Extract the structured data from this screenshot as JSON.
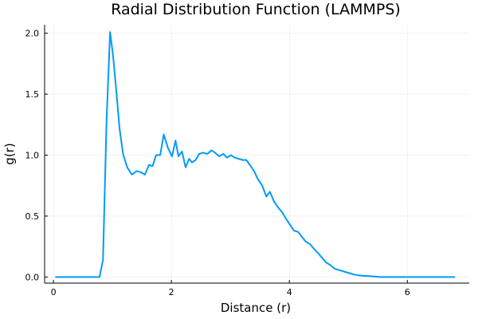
{
  "chart_data": {
    "type": "line",
    "title": "Radial Distribution Function (LAMMPS)",
    "xlabel": "Distance (r)",
    "ylabel": "g(r)",
    "xlim": [
      -0.15,
      7.05
    ],
    "ylim": [
      -0.05,
      2.07
    ],
    "x_ticks": [
      0,
      2,
      4,
      6
    ],
    "y_ticks": [
      0.0,
      0.5,
      1.0,
      1.5,
      2.0
    ],
    "x_tick_labels": [
      "0",
      "2",
      "4",
      "6"
    ],
    "y_tick_labels": [
      "0.0",
      "0.5",
      "1.0",
      "1.5",
      "2.0"
    ],
    "grid": true,
    "legend": "none",
    "colors": {
      "series": "#009AFA",
      "axis": "#000000"
    },
    "series": [
      {
        "x": [
          0.04,
          0.2,
          0.4,
          0.6,
          0.78,
          0.84,
          0.9,
          0.96,
          1.01,
          1.06,
          1.12,
          1.18,
          1.25,
          1.33,
          1.41,
          1.48,
          1.55,
          1.62,
          1.68,
          1.74,
          1.81,
          1.87,
          1.94,
          2.01,
          2.07,
          2.12,
          2.18,
          2.24,
          2.3,
          2.35,
          2.41,
          2.47,
          2.54,
          2.61,
          2.68,
          2.74,
          2.81,
          2.88,
          2.94,
          3.01,
          3.07,
          3.14,
          3.21,
          3.27,
          3.33,
          3.4,
          3.47,
          3.54,
          3.61,
          3.67,
          3.74,
          3.81,
          3.88,
          3.94,
          4.01,
          4.08,
          4.15,
          4.21,
          4.28,
          4.35,
          4.42,
          4.48,
          4.55,
          4.62,
          4.69,
          4.76,
          4.82,
          4.89,
          4.96,
          5.03,
          5.1,
          5.16,
          5.25,
          5.35,
          5.45,
          5.55,
          5.7,
          5.85,
          6.0,
          6.2,
          6.4,
          6.6,
          6.8
        ],
        "y": [
          0.0,
          0.0,
          0.0,
          0.0,
          0.0,
          0.14,
          1.28,
          2.01,
          1.82,
          1.56,
          1.22,
          1.01,
          0.9,
          0.84,
          0.87,
          0.86,
          0.84,
          0.92,
          0.91,
          1.0,
          1.0,
          1.17,
          1.06,
          0.99,
          1.12,
          0.99,
          1.03,
          0.9,
          0.97,
          0.94,
          0.96,
          1.01,
          1.02,
          1.01,
          1.04,
          1.02,
          0.99,
          1.01,
          0.98,
          1.0,
          0.98,
          0.97,
          0.96,
          0.96,
          0.92,
          0.87,
          0.8,
          0.75,
          0.66,
          0.7,
          0.62,
          0.57,
          0.53,
          0.48,
          0.43,
          0.38,
          0.37,
          0.33,
          0.29,
          0.27,
          0.23,
          0.2,
          0.16,
          0.12,
          0.1,
          0.07,
          0.06,
          0.05,
          0.04,
          0.03,
          0.02,
          0.015,
          0.01,
          0.007,
          0.004,
          0.0,
          0.0,
          0.0,
          0.0,
          0.0,
          0.0,
          0.0,
          0.0
        ]
      }
    ]
  }
}
